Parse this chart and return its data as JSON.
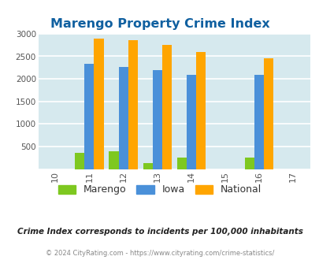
{
  "title": "Marengo Property Crime Index",
  "years": [
    2010,
    2011,
    2012,
    2013,
    2014,
    2015,
    2016,
    2017
  ],
  "year_labels": [
    "10",
    "11",
    "12",
    "13",
    "14",
    "15",
    "16",
    "17"
  ],
  "bar_years": [
    2011,
    2012,
    2013,
    2014,
    2016
  ],
  "marengo": [
    350,
    400,
    130,
    250,
    250
  ],
  "iowa": [
    2340,
    2270,
    2190,
    2090,
    2090
  ],
  "national": [
    2900,
    2850,
    2750,
    2600,
    2460
  ],
  "color_marengo": "#7EC820",
  "color_iowa": "#4A90D9",
  "color_national": "#FFA500",
  "bg_color": "#D6E9EE",
  "ylim": [
    0,
    3000
  ],
  "yticks": [
    0,
    500,
    1000,
    1500,
    2000,
    2500,
    3000
  ],
  "title_color": "#1060A0",
  "footer_text": "Crime Index corresponds to incidents per 100,000 inhabitants",
  "copyright_text": "© 2024 CityRating.com - https://www.cityrating.com/crime-statistics/",
  "bar_width": 0.28
}
